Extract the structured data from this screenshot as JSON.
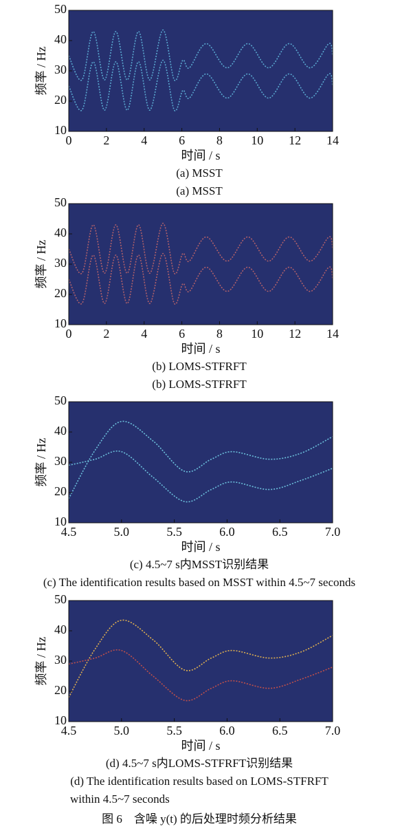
{
  "chart_data": [
    {
      "type": "spectrogram",
      "xlabel": "时间 / s",
      "ylabel": "频率 / Hz",
      "captions": [
        "(a) MSST",
        "(a) MSST"
      ],
      "background": "#26306e",
      "xlim": [
        0,
        14
      ],
      "ylim": [
        10,
        50
      ],
      "xticks": [
        0,
        2,
        4,
        6,
        8,
        10,
        12,
        14
      ],
      "yticks": [
        10,
        20,
        30,
        40,
        50
      ],
      "x": [
        0,
        0.7,
        1.3,
        1.9,
        2.5,
        3.1,
        3.7,
        4.3,
        5.0,
        5.6,
        6.05,
        6.4,
        7.3,
        8.4,
        9.5,
        10.6,
        11.7,
        12.8,
        13.8,
        14
      ],
      "series": [
        {
          "color": "#5aa8d0",
          "values": [
            35,
            27,
            43,
            27,
            43,
            27,
            43,
            27,
            43.5,
            27,
            33.5,
            31,
            39,
            31,
            39,
            31,
            39,
            31,
            39,
            35
          ]
        },
        {
          "color": "#5aa8d0",
          "values": [
            25,
            17,
            33,
            17,
            33,
            17,
            33,
            17,
            33.5,
            17,
            23.5,
            21,
            29,
            21,
            29,
            21,
            29,
            21,
            29,
            25
          ]
        }
      ]
    },
    {
      "type": "spectrogram",
      "xlabel": "时间 / s",
      "ylabel": "频率 / Hz",
      "captions": [
        "(b) LOMS-STFRFT",
        "(b) LOMS-STFRFT"
      ],
      "background": "#26306e",
      "xlim": [
        0,
        14
      ],
      "ylim": [
        10,
        50
      ],
      "xticks": [
        0,
        2,
        4,
        6,
        8,
        10,
        12,
        14
      ],
      "yticks": [
        10,
        20,
        30,
        40,
        50
      ],
      "x": [
        0,
        0.7,
        1.3,
        1.9,
        2.5,
        3.1,
        3.7,
        4.3,
        5.0,
        5.6,
        6.05,
        6.4,
        7.3,
        8.4,
        9.5,
        10.6,
        11.7,
        12.8,
        13.8,
        14
      ],
      "series": [
        {
          "color": "#b0606a",
          "values": [
            35,
            27,
            43,
            27,
            43,
            27,
            43,
            27,
            43.5,
            27,
            33.5,
            31,
            39,
            31,
            39,
            31,
            39,
            31,
            39,
            35
          ]
        },
        {
          "color": "#b0606a",
          "values": [
            25,
            17,
            33,
            17,
            33,
            17,
            33,
            17,
            33.5,
            17,
            23.5,
            21,
            29,
            21,
            29,
            21,
            29,
            21,
            29,
            25
          ]
        }
      ]
    },
    {
      "type": "spectrogram",
      "xlabel": "时间 / s",
      "ylabel": "频率 / Hz",
      "captions": [
        "(c) 4.5~7 s内MSST识别结果",
        "(c) The identification results based on MSST within 4.5~7 seconds"
      ],
      "background": "#26306e",
      "xlim": [
        4.5,
        7.0
      ],
      "ylim": [
        10,
        50
      ],
      "xticks": [
        4.5,
        {
          "value": 5,
          "label": "5.0"
        },
        5.5,
        {
          "value": 6,
          "label": "6.0"
        },
        6.5,
        {
          "value": 7,
          "label": "7.0"
        }
      ],
      "yticks": [
        10,
        20,
        30,
        40,
        50
      ],
      "x": [
        4.5,
        4.75,
        5.0,
        5.3,
        5.6,
        5.85,
        6.05,
        6.4,
        6.7,
        7.0
      ],
      "series": [
        {
          "color": "#6cc0dc",
          "values": [
            18,
            34,
            43.5,
            37,
            27,
            31,
            33.5,
            31,
            33,
            38.5
          ]
        },
        {
          "color": "#6cc0dc",
          "values": [
            29,
            31,
            33.5,
            25,
            17,
            21,
            23.5,
            21,
            24,
            28
          ]
        }
      ]
    },
    {
      "type": "spectrogram",
      "xlabel": "时间 / s",
      "ylabel": "频率 / Hz",
      "captions": [
        "(d) 4.5~7 s内LOMS-STFRFT识别结果",
        "(d) The identification results based on LOMS-STFRFT",
        "within 4.5~7 seconds"
      ],
      "background": "#26306e",
      "xlim": [
        4.5,
        7.0
      ],
      "ylim": [
        10,
        50
      ],
      "xticks": [
        4.5,
        {
          "value": 5,
          "label": "5.0"
        },
        5.5,
        {
          "value": 6,
          "label": "6.0"
        },
        6.5,
        {
          "value": 7,
          "label": "7.0"
        }
      ],
      "yticks": [
        10,
        20,
        30,
        40,
        50
      ],
      "x": [
        4.5,
        4.75,
        5.0,
        5.3,
        5.6,
        5.85,
        6.05,
        6.4,
        6.7,
        7.0
      ],
      "series": [
        {
          "color": "#e0b050",
          "values": [
            18,
            34,
            43.5,
            37,
            27,
            31,
            33.5,
            31,
            33,
            38.5
          ]
        },
        {
          "color": "#c0504a",
          "values": [
            29,
            31,
            33.5,
            25,
            17,
            21,
            23.5,
            21,
            24,
            28
          ]
        }
      ]
    }
  ],
  "figure_caption": "图 6　含噪 y(t) 的后处理时频分析结果"
}
